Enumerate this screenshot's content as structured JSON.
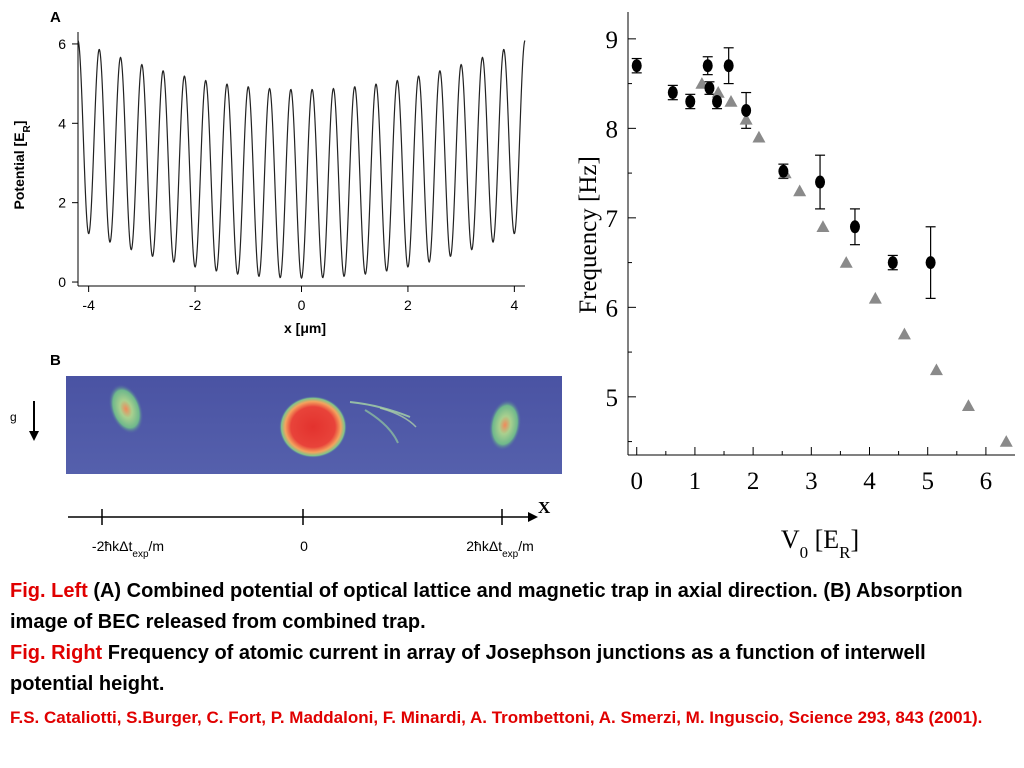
{
  "chart_data": [
    {
      "type": "line",
      "panel_label": "A",
      "xlabel": "x [μm]",
      "ylabel": "Potential [E",
      "ylabel_sub": "R",
      "ylabel_close": "]",
      "xlim": [
        -4.2,
        4.2
      ],
      "ylim": [
        -0.1,
        6.2
      ],
      "xticks": [
        -4,
        -2,
        0,
        2,
        4
      ],
      "xtick_labels": [
        "-4",
        "-2",
        "0",
        "2",
        "4"
      ],
      "yticks": [
        0,
        2,
        4,
        6
      ],
      "ytick_labels": [
        "0",
        "2",
        "4",
        "6"
      ],
      "series": [
        {
          "model": "V(x) = 0.1 + 0.07 x^2 + 4.75 sin^2(pi x / 0.4)",
          "x_range": [
            -4.2,
            4.2
          ]
        }
      ]
    },
    {
      "type": "heatmap",
      "panel_label": "B",
      "gravity_label": "g",
      "axis_label": "X",
      "tick_labels": [
        {
          "prefix": "-2",
          "hbar": "ħ",
          "mid": "kΔt",
          "sub": "exp",
          "suffix": "/m"
        },
        {
          "prefix": "",
          "hbar": "",
          "mid": "0",
          "sub": "",
          "suffix": ""
        },
        {
          "prefix": "2",
          "hbar": "ħ",
          "mid": "kΔt",
          "sub": "exp",
          "suffix": "/m"
        }
      ],
      "colors": {
        "background": "#4d57a6",
        "peak": "#e8433a",
        "halo": "#f4a35e",
        "mid": "#7fc48a"
      }
    },
    {
      "type": "scatter",
      "xlabel": "V",
      "xlabel_sub": "0",
      "xlabel_rest": " [E",
      "xlabel_sub2": "R",
      "xlabel_close": "]",
      "ylabel": "Frequency [Hz]",
      "xlim": [
        -0.15,
        6.5
      ],
      "ylim": [
        4.35,
        9.3
      ],
      "xticks": [
        0,
        1,
        2,
        3,
        4,
        5,
        6
      ],
      "xtick_labels": [
        "0",
        "1",
        "2",
        "3",
        "4",
        "5",
        "6"
      ],
      "yticks": [
        5,
        6,
        7,
        8,
        9
      ],
      "ytick_labels": [
        "5",
        "6",
        "7",
        "8",
        "9"
      ],
      "series": [
        {
          "marker": "circle",
          "color": "#000000",
          "points": [
            {
              "x": 0.0,
              "y": 8.7,
              "err": 0.08
            },
            {
              "x": 0.62,
              "y": 8.4,
              "err": 0.08
            },
            {
              "x": 0.92,
              "y": 8.3,
              "err": 0.08
            },
            {
              "x": 1.22,
              "y": 8.7,
              "err": 0.1
            },
            {
              "x": 1.25,
              "y": 8.45,
              "err": 0.07
            },
            {
              "x": 1.38,
              "y": 8.3,
              "err": 0.08
            },
            {
              "x": 1.58,
              "y": 8.7,
              "err": 0.2
            },
            {
              "x": 1.88,
              "y": 8.2,
              "err": 0.2
            },
            {
              "x": 2.52,
              "y": 7.52,
              "err": 0.08
            },
            {
              "x": 3.15,
              "y": 7.4,
              "err": 0.3
            },
            {
              "x": 3.75,
              "y": 6.9,
              "err": 0.2
            },
            {
              "x": 4.4,
              "y": 6.5,
              "err": 0.08
            },
            {
              "x": 5.05,
              "y": 6.5,
              "err": 0.4
            }
          ]
        },
        {
          "marker": "triangle",
          "color": "#8a8a8a",
          "points": [
            {
              "x": 1.12,
              "y": 8.5
            },
            {
              "x": 1.4,
              "y": 8.4
            },
            {
              "x": 1.62,
              "y": 8.3
            },
            {
              "x": 1.88,
              "y": 8.1
            },
            {
              "x": 2.1,
              "y": 7.9
            },
            {
              "x": 2.55,
              "y": 7.5
            },
            {
              "x": 2.8,
              "y": 7.3
            },
            {
              "x": 3.2,
              "y": 6.9
            },
            {
              "x": 3.6,
              "y": 6.5
            },
            {
              "x": 4.1,
              "y": 6.1
            },
            {
              "x": 4.6,
              "y": 5.7
            },
            {
              "x": 5.15,
              "y": 5.3
            },
            {
              "x": 5.7,
              "y": 4.9
            },
            {
              "x": 6.35,
              "y": 4.5
            }
          ]
        }
      ]
    }
  ],
  "caption": {
    "left_label": "Fig. Left",
    "left_text": " (A) Combined potential of optical lattice and magnetic trap in axial direction. (B) Absorption image of BEC released from combined trap.",
    "right_label": "Fig. Right",
    "right_text": "  Frequency of atomic current in array of Josephson junctions as a function of interwell potential height.",
    "reference": "F.S. Cataliotti, S.Burger, C. Fort, P. Maddaloni, F. Minardi, A. Trombettoni, A. Smerzi, M. Inguscio, Science 293, 843 (2001)."
  }
}
